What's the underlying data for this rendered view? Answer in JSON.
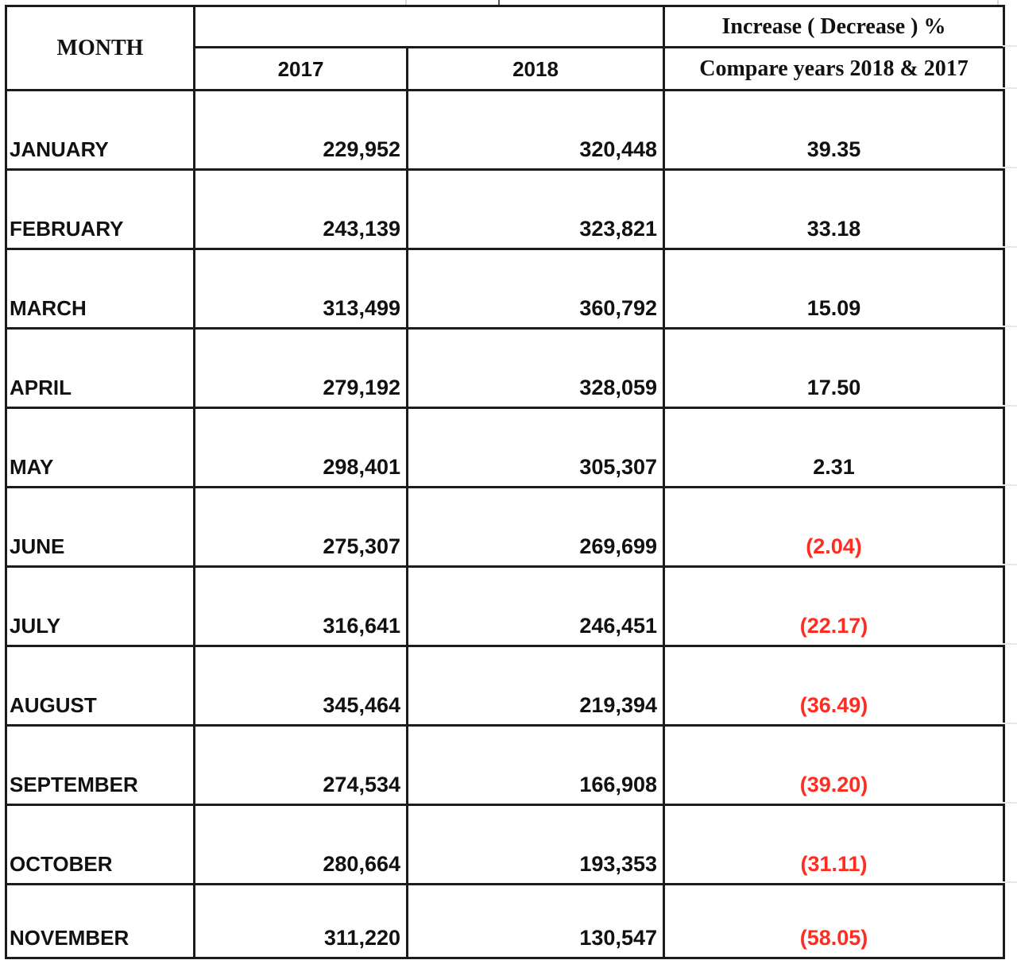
{
  "table": {
    "header": {
      "month": "MONTH",
      "increase_pct": "Increase ( Decrease ) %",
      "year_2017": "2017",
      "year_2018": "2018",
      "compare": "Compare years 2018 & 2017"
    },
    "rows": [
      {
        "month": "JANUARY",
        "v2017": "229,952",
        "v2018": "320,448",
        "change": "39.35",
        "negative": false
      },
      {
        "month": "FEBRUARY",
        "v2017": "243,139",
        "v2018": "323,821",
        "change": "33.18",
        "negative": false
      },
      {
        "month": "MARCH",
        "v2017": "313,499",
        "v2018": "360,792",
        "change": "15.09",
        "negative": false
      },
      {
        "month": "APRIL",
        "v2017": "279,192",
        "v2018": "328,059",
        "change": "17.50",
        "negative": false
      },
      {
        "month": "MAY",
        "v2017": "298,401",
        "v2018": "305,307",
        "change": "2.31",
        "negative": false
      },
      {
        "month": "JUNE",
        "v2017": "275,307",
        "v2018": "269,699",
        "change": "(2.04)",
        "negative": true
      },
      {
        "month": "JULY",
        "v2017": "316,641",
        "v2018": "246,451",
        "change": "(22.17)",
        "negative": true
      },
      {
        "month": "AUGUST",
        "v2017": "345,464",
        "v2018": "219,394",
        "change": "(36.49)",
        "negative": true
      },
      {
        "month": "SEPTEMBER",
        "v2017": "274,534",
        "v2018": "166,908",
        "change": "(39.20)",
        "negative": true
      },
      {
        "month": "OCTOBER",
        "v2017": "280,664",
        "v2018": "193,353",
        "change": "(31.11)",
        "negative": true
      },
      {
        "month": "NOVEMBER",
        "v2017": "311,220",
        "v2018": "130,547",
        "change": "(58.05)",
        "negative": true
      }
    ]
  },
  "colors": {
    "text": "#111111",
    "negative_value": "#ff2d21",
    "grid": "#1b1b1b",
    "faint_grid": "#e8e8e8"
  }
}
